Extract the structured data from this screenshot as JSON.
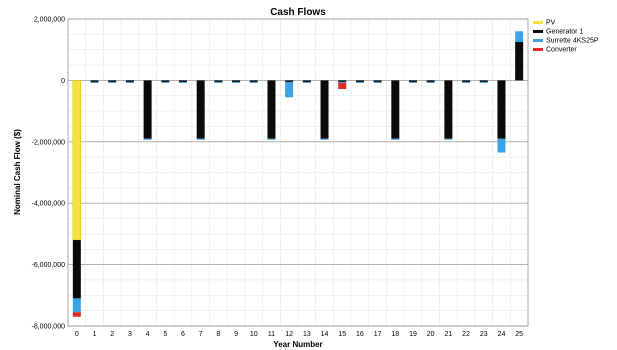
{
  "chart_data": {
    "type": "bar",
    "stacked": true,
    "title": "Cash Flows",
    "xlabel": "Year Number",
    "ylabel": "Nominal Cash Flow ($)",
    "ylim": [
      -8000000,
      2000000
    ],
    "yticks": [
      2000000,
      0,
      -2000000,
      -4000000,
      -6000000,
      -8000000
    ],
    "ytick_labels": [
      "2,000,000",
      "0",
      "-2,000,000",
      "-4,000,000",
      "-6,000,000",
      "-8,000,000"
    ],
    "grid": true,
    "legend_position": "top-right",
    "categories": [
      "0",
      "1",
      "2",
      "3",
      "4",
      "5",
      "6",
      "7",
      "8",
      "9",
      "10",
      "11",
      "12",
      "13",
      "14",
      "15",
      "16",
      "17",
      "18",
      "19",
      "20",
      "21",
      "22",
      "23",
      "24",
      "25"
    ],
    "series": [
      {
        "name": "PV",
        "color": "#f7e13a",
        "values": [
          -5200000,
          0,
          0,
          0,
          0,
          0,
          0,
          0,
          0,
          0,
          0,
          0,
          0,
          0,
          0,
          0,
          0,
          0,
          0,
          0,
          0,
          0,
          0,
          0,
          0,
          0
        ]
      },
      {
        "name": "Generator 1",
        "color": "#0a0a0a",
        "values": [
          -1900000,
          -50000,
          -50000,
          -50000,
          -1900000,
          -50000,
          -50000,
          -1900000,
          -50000,
          -50000,
          -50000,
          -1900000,
          -50000,
          -50000,
          -1900000,
          -50000,
          -50000,
          -50000,
          -1900000,
          -50000,
          -50000,
          -1900000,
          -50000,
          -50000,
          -1900000,
          1250000
        ]
      },
      {
        "name": "Surrette 4KS25P",
        "color": "#3aa3e6",
        "values": [
          -450000,
          -30000,
          -30000,
          -30000,
          -30000,
          -30000,
          -30000,
          -30000,
          -30000,
          -30000,
          -30000,
          -30000,
          -500000,
          -30000,
          -30000,
          -30000,
          -30000,
          -30000,
          -30000,
          -30000,
          -30000,
          -30000,
          -30000,
          -30000,
          -450000,
          350000
        ]
      },
      {
        "name": "Converter",
        "color": "#e02a2a",
        "values": [
          -150000,
          0,
          0,
          0,
          0,
          0,
          0,
          0,
          0,
          0,
          0,
          0,
          0,
          0,
          0,
          -200000,
          0,
          0,
          0,
          0,
          0,
          0,
          0,
          0,
          0,
          0
        ]
      }
    ]
  }
}
